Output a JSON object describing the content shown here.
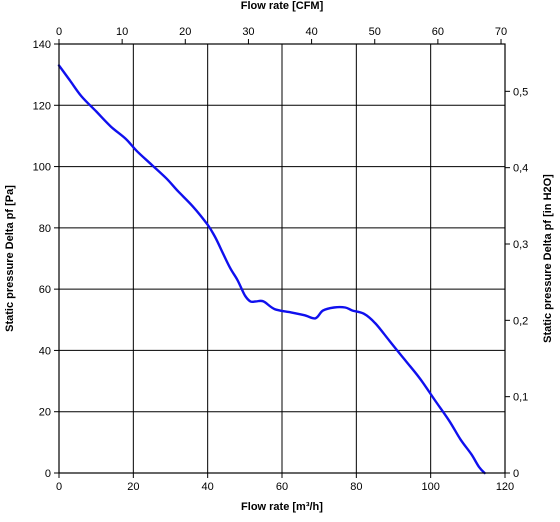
{
  "chart_data": {
    "type": "line",
    "x_bottom": {
      "label": "Flow rate [m³/h]",
      "lim": [
        0,
        120
      ],
      "ticks": [
        0,
        20,
        40,
        60,
        80,
        100,
        120
      ],
      "tick_labels": [
        "0",
        "20",
        "40",
        "60",
        "80",
        "100",
        "120"
      ]
    },
    "x_top": {
      "label": "Flow rate [CFM]",
      "lim": [
        0,
        70.63
      ],
      "ticks": [
        0,
        10,
        20,
        30,
        40,
        50,
        60,
        70
      ],
      "tick_labels": [
        "0",
        "10",
        "20",
        "30",
        "40",
        "50",
        "60",
        "70"
      ]
    },
    "y_left": {
      "label": "Static pressure Delta pf [Pa]",
      "lim": [
        0,
        140
      ],
      "ticks": [
        0,
        20,
        40,
        60,
        80,
        100,
        120,
        140
      ],
      "tick_labels": [
        "0",
        "20",
        "40",
        "60",
        "80",
        "100",
        "120",
        "140"
      ]
    },
    "y_right": {
      "label": "Static pressure Delta pf [in H2O]",
      "lim": [
        0,
        0.562
      ],
      "ticks": [
        0,
        0.1,
        0.2,
        0.3,
        0.4,
        0.5
      ],
      "tick_labels": [
        "0",
        "0,1",
        "0,2",
        "0,3",
        "0,4",
        "0,5"
      ]
    },
    "grid": true,
    "series": [
      {
        "color": "#1010ee",
        "x": [
          0,
          3,
          6,
          10,
          14,
          18,
          21,
          25,
          29,
          32,
          36,
          40,
          42,
          44,
          46,
          48,
          50,
          51.5,
          53,
          55,
          58,
          62,
          66,
          69,
          71,
          74,
          77,
          79,
          82,
          85,
          89,
          93,
          97,
          101,
          105,
          108,
          111,
          113,
          114.5
        ],
        "y": [
          133,
          128,
          123,
          118,
          113,
          109,
          105,
          100.5,
          96,
          92,
          87,
          81,
          77,
          72,
          67,
          63,
          58,
          56,
          56,
          56,
          53.5,
          52.5,
          51.5,
          50.5,
          53,
          54,
          54,
          53,
          52,
          49,
          43,
          37,
          31,
          24,
          17,
          11,
          6,
          2,
          0
        ]
      }
    ]
  }
}
